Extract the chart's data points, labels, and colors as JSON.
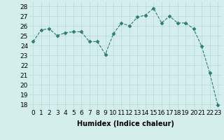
{
  "x": [
    0,
    1,
    2,
    3,
    4,
    5,
    6,
    7,
    8,
    9,
    10,
    11,
    12,
    13,
    14,
    15,
    16,
    17,
    18,
    19,
    20,
    21,
    22,
    23
  ],
  "y": [
    24.4,
    25.6,
    25.7,
    25.0,
    25.3,
    25.4,
    25.4,
    24.4,
    24.4,
    23.1,
    25.2,
    26.3,
    26.0,
    26.9,
    27.1,
    27.8,
    26.3,
    27.0,
    26.3,
    26.3,
    25.7,
    23.9,
    21.2,
    17.9
  ],
  "line_color": "#2e7d6e",
  "marker": "D",
  "marker_size": 2.5,
  "xlabel": "Humidex (Indice chaleur)",
  "ylim_min": 17.5,
  "ylim_max": 28.5,
  "xlim_min": -0.5,
  "xlim_max": 23.5,
  "yticks": [
    18,
    19,
    20,
    21,
    22,
    23,
    24,
    25,
    26,
    27,
    28
  ],
  "xticks": [
    0,
    1,
    2,
    3,
    4,
    5,
    6,
    7,
    8,
    9,
    10,
    11,
    12,
    13,
    14,
    15,
    16,
    17,
    18,
    19,
    20,
    21,
    22,
    23
  ],
  "bg_color": "#d4eeee",
  "grid_color": "#b8d8d8",
  "font_size": 6.5,
  "xlabel_font_size": 7.0
}
